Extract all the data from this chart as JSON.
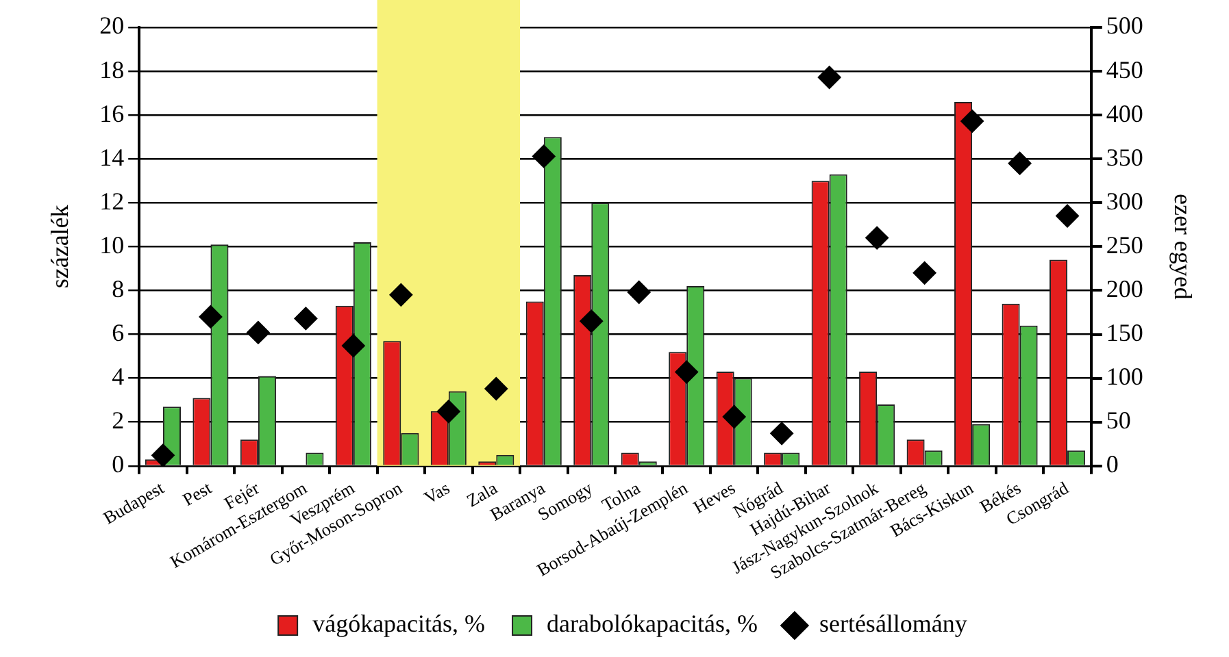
{
  "chart_data": {
    "type": "bar",
    "categories": [
      "Budapest",
      "Pest",
      "Fejér",
      "Komárom-Esztergom",
      "Veszprém",
      "Győr-Moson-Sopron",
      "Vas",
      "Zala",
      "Baranya",
      "Somogy",
      "Tolna",
      "Borsod-Abaúj-Zemplén",
      "Heves",
      "Nógrád",
      "Hajdú-Bihar",
      "Jász-Nagykun-Szolnok",
      "Szabolcs-Szatmár-Bereg",
      "Bács-Kiskun",
      "Békés",
      "Csongrád"
    ],
    "series": [
      {
        "name": "vágókapacitás, %",
        "color": "#e41e1e",
        "values": [
          0.3,
          3.1,
          1.2,
          0,
          7.3,
          5.7,
          2.5,
          0.2,
          7.5,
          8.7,
          0.6,
          5.2,
          4.3,
          0.6,
          13.0,
          4.3,
          1.2,
          16.6,
          7.4,
          9.4
        ]
      },
      {
        "name": "darabolókapacitás, %",
        "color": "#4cb847",
        "values": [
          2.7,
          10.1,
          4.1,
          0.6,
          10.2,
          1.5,
          3.4,
          0.5,
          15.0,
          12.0,
          0.2,
          8.2,
          4.0,
          0.6,
          13.3,
          2.8,
          0.7,
          1.9,
          6.4,
          0.7
        ]
      },
      {
        "name": "sertésállomány",
        "type": "scatter",
        "axis": "y2",
        "color": "#000000",
        "marker": "diamond",
        "x": [
          "Budapest",
          "Pest",
          "Fejér",
          "Komárom-Esztergom",
          "Veszprém",
          "Győr-Moson-Sopron",
          "Vas",
          "Zala",
          "Baranya",
          "Somogy",
          "Tolna",
          "Borsod-Abaúj-Zemplén",
          "Heves",
          "Nógrád",
          "Hajdú-Bihar",
          "Jász-Nagykun-Szolnok",
          "Szabolcs-Szatmár-Bereg",
          "Bács-Kiskun",
          "Békés",
          "Csongrád"
        ],
        "values": [
          12,
          170,
          152,
          168,
          137,
          195,
          62,
          88,
          353,
          165,
          198,
          107,
          56,
          37,
          443,
          260,
          220,
          393,
          345,
          285
        ]
      }
    ],
    "ylabel": "százalék",
    "y2label": "ezer egyed",
    "ylim": [
      0,
      20
    ],
    "yticks": [
      0,
      2,
      4,
      6,
      8,
      10,
      12,
      14,
      16,
      18,
      20
    ],
    "y2lim": [
      0,
      500
    ],
    "y2ticks": [
      0,
      50,
      100,
      150,
      200,
      250,
      300,
      350,
      400,
      450,
      500
    ],
    "bands": [
      {
        "axis": "x",
        "from": "Győr-Moson-Sopron",
        "to": "Zala",
        "color": "#f7f27a"
      }
    ],
    "grid": "y",
    "legend": "bottom"
  }
}
